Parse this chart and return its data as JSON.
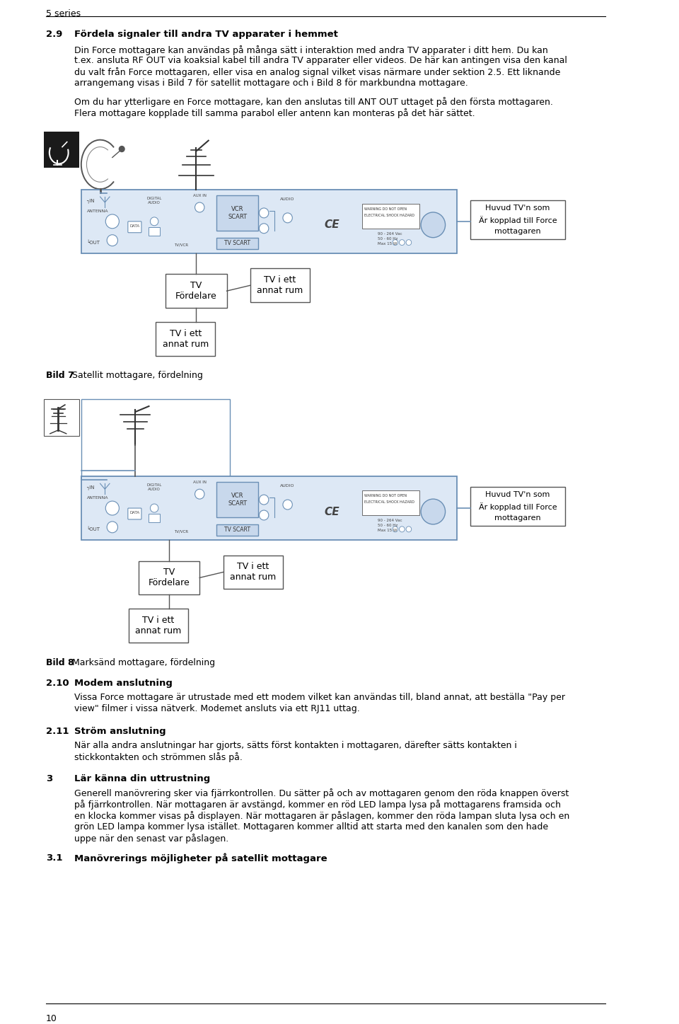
{
  "background_color": "#ffffff",
  "page_width": 9.6,
  "page_height": 14.47,
  "header_text": "5 series",
  "footer_text": "10",
  "section_2_9_num": "2.9",
  "section_2_9_title": "Fördela signaler till andra TV apparater i hemmet",
  "section_2_9_para1_line1": "Din Force mottagare kan användas på många sätt i interaktion med andra TV apparater i ditt hem. Du kan",
  "section_2_9_para1_line2": "t.ex. ansluta RF OUT via koaksial kabel till andra TV apparater eller videos. De här kan antingen visa den kanal",
  "section_2_9_para1_line3": "du valt från Force mottagaren, eller visa en analog signal vilket visas närmare under sektion 2.5. Ett liknande",
  "section_2_9_para1_line4": "arrangemang visas i Bild 7 för satellit mottagare och i Bild 8 för markbundna mottagare.",
  "section_2_9_para2_line1": "Om du har ytterligare en Force mottagare, kan den anslutas till ANT OUT uttaget på den första mottagaren.",
  "section_2_9_para2_line2": "Flera mottagare kopplade till samma parabol eller antenn kan monteras på det här sättet.",
  "bild7_caption_bold": "Bild 7",
  "bild7_caption_rest": " Satellit mottagare, fördelning",
  "bild8_caption_bold": "Bild 8",
  "bild8_caption_rest": " Marksänd mottagare, fördelning",
  "section_2_10_num": "2.10",
  "section_2_10_title": "Modem anslutning",
  "section_2_10_line1": "Vissa Force mottagare är utrustade med ett modem vilket kan användas till, bland annat, att beställa \"Pay per",
  "section_2_10_line2": "view\" filmer i vissa nätverk. Modemet ansluts via ett RJ11 uttag.",
  "section_2_11_num": "2.11",
  "section_2_11_title": "Ström anslutning",
  "section_2_11_line1": "När alla andra anslutningar har gjorts, sätts först kontakten i mottagaren, därefter sätts kontakten i",
  "section_2_11_line2": "stickkontakten och strömmen slås på.",
  "section_3_num": "3",
  "section_3_title": "Lär känna din uttrustning",
  "section_3_line1": "Generell manövrering sker via fjärrkontrollen. Du sätter på och av mottagaren genom den röda knappen överst",
  "section_3_line2": "på fjärrkontrollen. När mottagaren är avstängd, kommer en röd LED lampa lysa på mottagarens framsida och",
  "section_3_line3": "en klocka kommer visas på displayen. När mottagaren är påslagen, kommer den röda lampan sluta lysa och en",
  "section_3_line4": "grön LED lampa kommer lysa istället. Mottagaren kommer alltid att starta med den kanalen som den hade",
  "section_3_line5": "uppe när den senast var påslagen.",
  "section_3_1_num": "3.1",
  "section_3_1_title": "Manövrerings möjligheter på satellit mottagare",
  "label_huvud_tv": "Huvud TV'n som\nÄr kopplad till Force\nmottagaren",
  "label_tv_fordelare": "TV\nFördelare",
  "label_tv_rum1": "TV i ett\nannat rum",
  "label_tv_rum2": "TV i ett\nannat rum",
  "recv_edge_color": "#6a8fb5",
  "recv_face_color": "#dde8f5",
  "box_edge_color": "#555555",
  "line_color_blue": "#6a8fb5",
  "line_color_dark": "#555555",
  "text_label_color": "#444444"
}
